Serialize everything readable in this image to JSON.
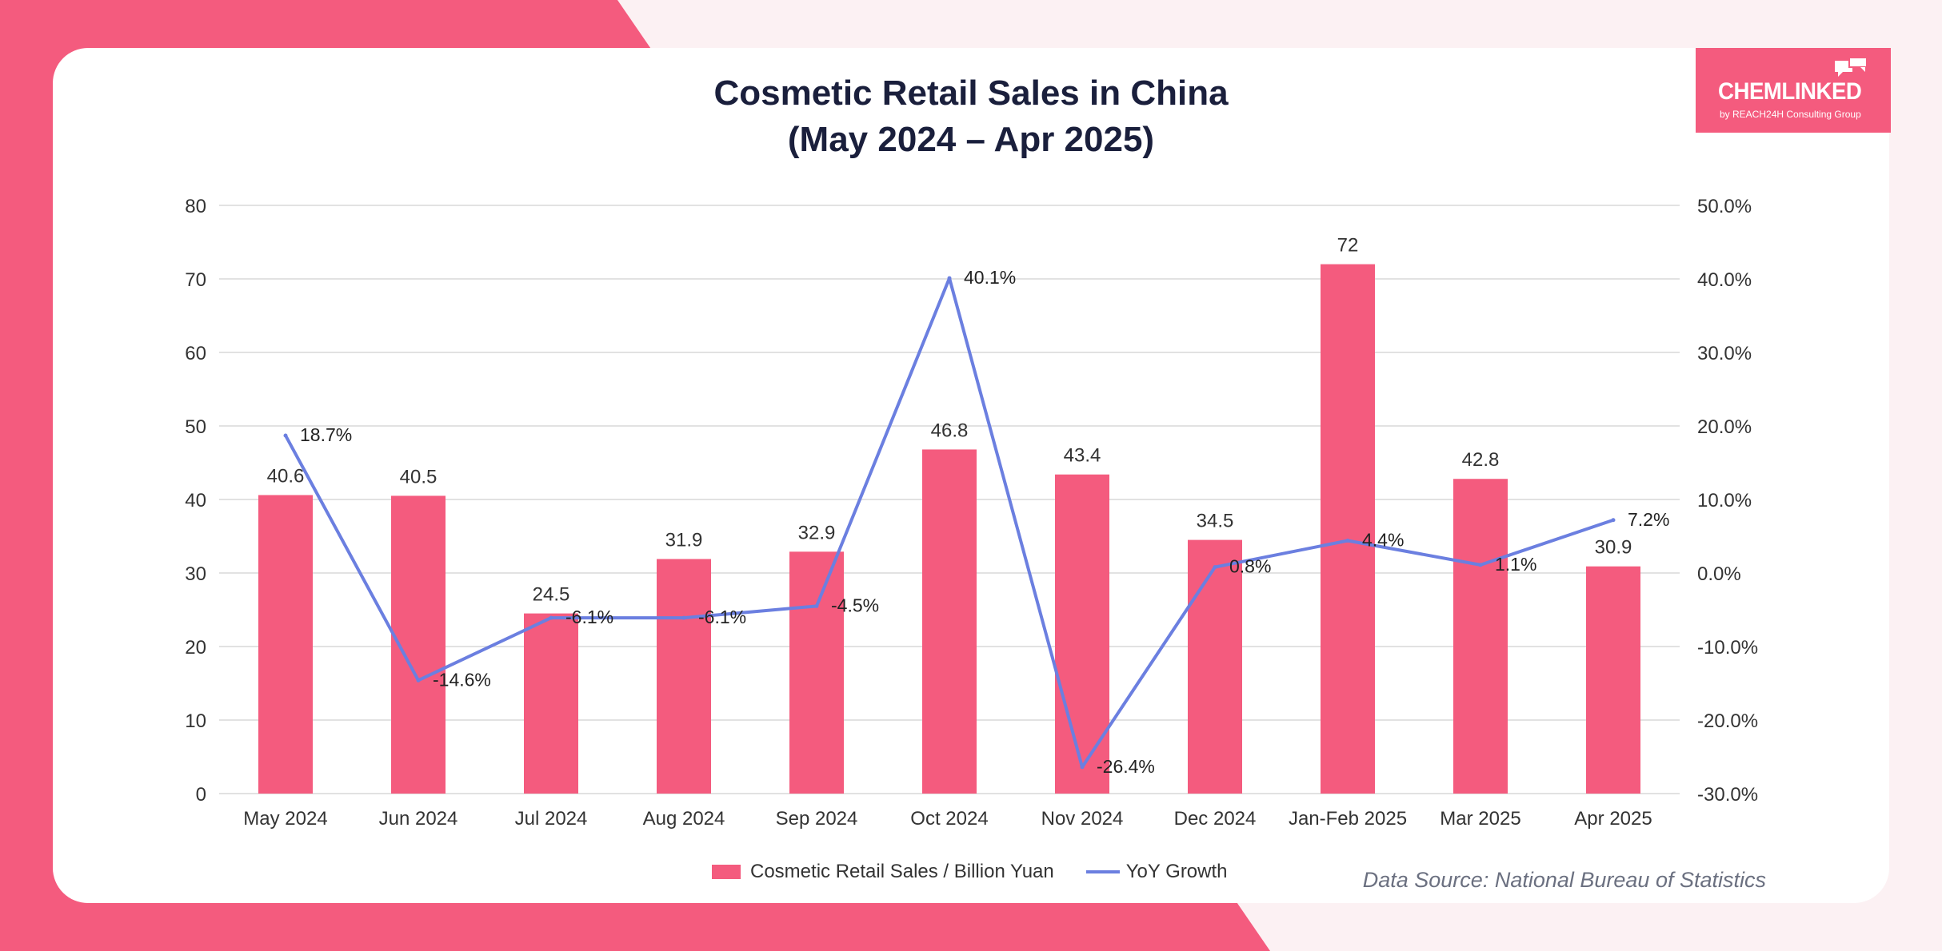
{
  "title_line1": "Cosmetic Retail Sales in China",
  "title_line2": "(May 2024 – Apr 2025)",
  "logo": {
    "name": "CHEMLINKED",
    "tagline": "by REACH24H Consulting Group"
  },
  "source": "Data Source: National Bureau of Statistics",
  "colors": {
    "bar": "#f45b7e",
    "line": "#6b7fe0",
    "accent": "#f45b7e",
    "title": "#1a1f3c"
  },
  "chart_data": {
    "type": "bar",
    "categories": [
      "May 2024",
      "Jun 2024",
      "Jul 2024",
      "Aug 2024",
      "Sep 2024",
      "Oct 2024",
      "Nov 2024",
      "Dec 2024",
      "Jan-Feb 2025",
      "Mar 2025",
      "Apr 2025"
    ],
    "series": [
      {
        "name": "Cosmetic Retail Sales / Billion Yuan",
        "type": "bar",
        "axis": "left",
        "values": [
          40.6,
          40.5,
          24.5,
          31.9,
          32.9,
          46.8,
          43.4,
          34.5,
          72,
          42.8,
          30.9
        ],
        "labels": [
          "40.6",
          "40.5",
          "24.5",
          "31.9",
          "32.9",
          "46.8",
          "43.4",
          "34.5",
          "72",
          "42.8",
          "30.9"
        ]
      },
      {
        "name": "YoY Growth",
        "type": "line",
        "axis": "right",
        "values": [
          18.7,
          -14.6,
          -6.1,
          -6.1,
          -4.5,
          40.1,
          -26.4,
          0.8,
          4.4,
          1.1,
          7.2
        ],
        "labels": [
          "18.7%",
          "-14.6%",
          "-6.1%",
          "-6.1%",
          "-4.5%",
          "40.1%",
          "-26.4%",
          "0.8%",
          "4.4%",
          "1.1%",
          "7.2%"
        ]
      }
    ],
    "y_left": {
      "ylim": [
        0,
        80
      ],
      "ticks": [
        "0",
        "10",
        "20",
        "30",
        "40",
        "50",
        "60",
        "70",
        "80"
      ]
    },
    "y_right": {
      "ylim": [
        -30,
        50
      ],
      "ticks": [
        "-30.0%",
        "-20.0%",
        "-10.0%",
        "0.0%",
        "10.0%",
        "20.0%",
        "30.0%",
        "40.0%",
        "50.0%"
      ]
    },
    "grid": true,
    "legend": "bottom-center"
  }
}
